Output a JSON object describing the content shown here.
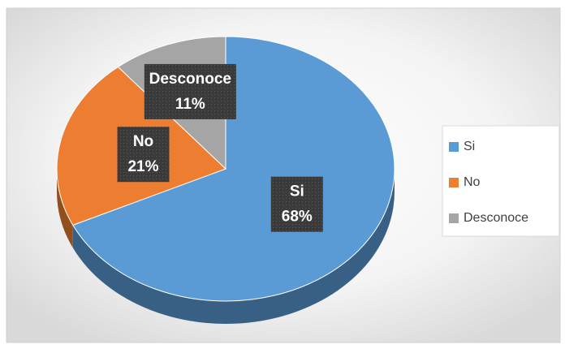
{
  "chart_data": {
    "type": "pie",
    "categories": [
      "Si",
      "No",
      "Desconoce"
    ],
    "values": [
      68,
      21,
      11
    ],
    "value_labels": [
      "68%",
      "21%",
      "11%"
    ],
    "colors": [
      "#5b9bd5",
      "#ed7d31",
      "#a5a5a5"
    ],
    "legend": "right"
  }
}
